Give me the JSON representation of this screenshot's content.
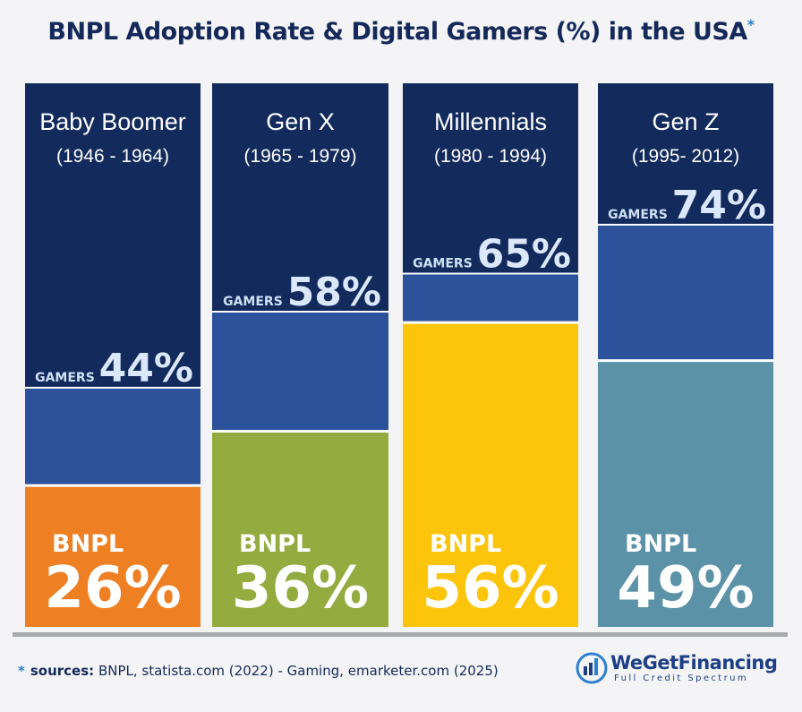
{
  "title": "BNPL Adoption Rate & Digital Gamers (%) in the USA",
  "title_marker": "*",
  "chart_data": {
    "type": "bar",
    "title": "BNPL Adoption Rate & Digital Gamers (%) in the USA",
    "categories": [
      {
        "name": "Baby Boomer",
        "years": "(1946 - 1964)"
      },
      {
        "name": "Gen X",
        "years": "(1965 - 1979)"
      },
      {
        "name": "Millennials",
        "years": "(1980 - 1994)"
      },
      {
        "name": "Gen Z",
        "years": "(1995- 2012)"
      }
    ],
    "series": [
      {
        "name": "BNPL",
        "values": [
          26,
          36,
          56,
          49
        ],
        "colors": [
          "#ee7f22",
          "#93ab3f",
          "#fcc50c",
          "#5b92a8"
        ]
      },
      {
        "name": "GAMERS",
        "values": [
          44,
          58,
          65,
          74
        ],
        "color": "#2c529b"
      }
    ],
    "ylim": [
      0,
      100
    ],
    "background_color": "#122a5c"
  },
  "footer": {
    "marker": "*",
    "label": "sources:",
    "text": "BNPL, statista.com (2022) - Gaming, emarketer.com (2025)"
  },
  "logo": {
    "name": "WeGetFinancing",
    "tagline": "Full Credit Spectrum"
  }
}
